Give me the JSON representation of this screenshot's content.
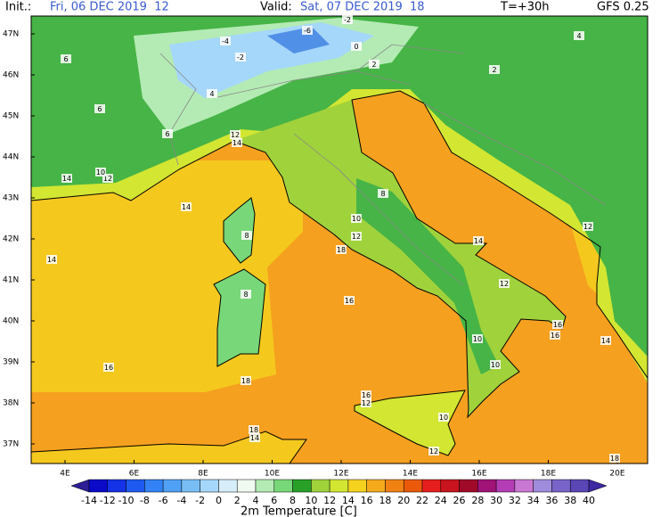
{
  "header": {
    "init_label": "Init.:",
    "init": "Fri, 06 DEC 2019  12",
    "valid_label": "Valid:",
    "valid": "Sat, 07 DEC 2019  18",
    "step": "T=+30h",
    "model": "GFS 0.25"
  },
  "axes": {
    "lat_labels": [
      "47N",
      "46N",
      "45N",
      "44N",
      "43N",
      "42N",
      "41N",
      "40N",
      "39N",
      "38N",
      "37N"
    ],
    "lon_labels": [
      "4E",
      "6E",
      "8E",
      "10E",
      "12E",
      "14E",
      "16E",
      "18E",
      "20E"
    ]
  },
  "spot_values": [
    14,
    14,
    16,
    16,
    18,
    18,
    18,
    18,
    14,
    12,
    10,
    12,
    16,
    10,
    10,
    16,
    14,
    12,
    10,
    8,
    12,
    10,
    14,
    12,
    8,
    8,
    6,
    4,
    2,
    2,
    0,
    -2,
    -4,
    -6,
    -2,
    4,
    6,
    6,
    12,
    14,
    16,
    14,
    12
  ],
  "colorbar": {
    "title": "2m Temperature [C]",
    "ticks": [
      -14,
      -12,
      -10,
      -8,
      -6,
      -4,
      -2,
      0,
      2,
      4,
      6,
      8,
      10,
      12,
      14,
      16,
      18,
      20,
      22,
      24,
      26,
      28,
      30,
      32,
      34,
      36,
      38,
      40
    ],
    "colors": [
      "#2d1e96",
      "#0a0ac8",
      "#1432e6",
      "#1e5af0",
      "#3282f5",
      "#50a0f5",
      "#78bef5",
      "#a5d7fa",
      "#d7eefa",
      "#f0faf0",
      "#b4ebb4",
      "#78d778",
      "#28a028",
      "#a0d23c",
      "#d2e632",
      "#f5d21e",
      "#f5aa1e",
      "#f08214",
      "#eb5a0a",
      "#e61e1e",
      "#c8141e",
      "#a00a28",
      "#a01478",
      "#b43cb4",
      "#c878d2",
      "#a08cdc",
      "#7864c8",
      "#5a46b4",
      "#3c28a0"
    ]
  }
}
